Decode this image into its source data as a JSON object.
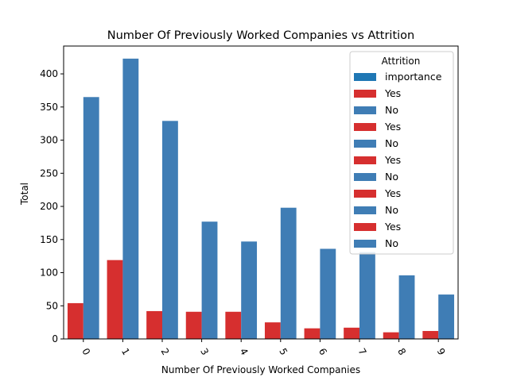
{
  "chart_data": {
    "type": "bar",
    "title": "Number Of Previously Worked Companies vs Attrition",
    "xlabel": "Number Of Previously Worked Companies",
    "ylabel": "Total",
    "categories": [
      "0",
      "1",
      "2",
      "3",
      "4",
      "5",
      "6",
      "7",
      "8",
      "9"
    ],
    "yticks": [
      "0",
      "50",
      "100",
      "150",
      "200",
      "250",
      "300",
      "350",
      "400"
    ],
    "ylim": [
      0,
      442
    ],
    "series": [
      {
        "name": "Yes",
        "color": "#d62f2f",
        "values": [
          54,
          119,
          42,
          41,
          41,
          25,
          16,
          17,
          10,
          12
        ]
      },
      {
        "name": "No",
        "color": "#3f7db5",
        "values": [
          365,
          423,
          329,
          177,
          147,
          198,
          136,
          131,
          96,
          67
        ]
      }
    ],
    "legend": {
      "title": "Attrition",
      "placement": "top-right",
      "entries": [
        {
          "label": "importance",
          "color": "#1f77b4"
        },
        {
          "label": "Yes",
          "color": "#d62f2f"
        },
        {
          "label": "No",
          "color": "#3f7db5"
        },
        {
          "label": "Yes",
          "color": "#d62f2f"
        },
        {
          "label": "No",
          "color": "#3f7db5"
        },
        {
          "label": "Yes",
          "color": "#d62f2f"
        },
        {
          "label": "No",
          "color": "#3f7db5"
        },
        {
          "label": "Yes",
          "color": "#d62f2f"
        },
        {
          "label": "No",
          "color": "#3f7db5"
        },
        {
          "label": "Yes",
          "color": "#d62f2f"
        },
        {
          "label": "No",
          "color": "#3f7db5"
        }
      ]
    },
    "grid": false
  }
}
